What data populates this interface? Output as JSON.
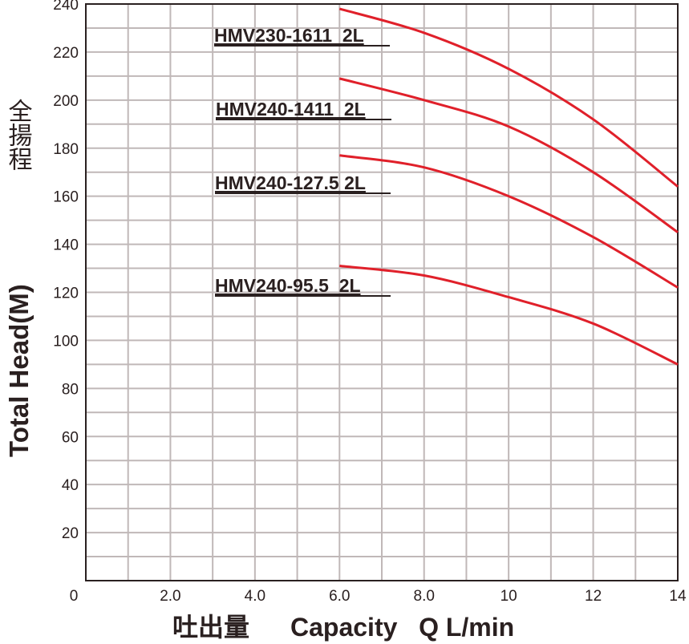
{
  "chart_data": {
    "type": "line",
    "xlabel_cjk": "吐出量",
    "xlabel": "Capacity   Q L/min",
    "ylabel_cjk": "全揚程",
    "ylabel": "Total Head(M)",
    "xlim": [
      0,
      14
    ],
    "ylim": [
      0,
      240
    ],
    "x_ticks": [
      "0",
      "2.0",
      "4.0",
      "6.0",
      "8.0",
      "10",
      "12",
      "14"
    ],
    "x_tick_values": [
      0,
      2,
      4,
      6,
      8,
      10,
      12,
      14
    ],
    "y_ticks": [
      "20",
      "40",
      "60",
      "80",
      "100",
      "120",
      "140",
      "160",
      "180",
      "200",
      "220",
      "240"
    ],
    "y_tick_values": [
      20,
      40,
      60,
      80,
      100,
      120,
      140,
      160,
      180,
      200,
      220,
      240
    ],
    "grid": true,
    "grid_color": "#c0b8b8",
    "line_color": "#e0202a",
    "series": [
      {
        "name": "HMV230-1611  2L",
        "x": [
          6,
          8,
          10,
          12,
          14
        ],
        "y": [
          238,
          228,
          213,
          192,
          164
        ]
      },
      {
        "name": "HMV240-1411  2L",
        "x": [
          6,
          8,
          10,
          12,
          14
        ],
        "y": [
          209,
          200,
          189,
          170,
          145
        ]
      },
      {
        "name": "HMV240-127.5 2L",
        "x": [
          6,
          8,
          10,
          12,
          14
        ],
        "y": [
          177,
          172,
          160,
          143,
          122
        ]
      },
      {
        "name": "HMV240-95.5  2L",
        "x": [
          6,
          8,
          10,
          12,
          14
        ],
        "y": [
          131,
          127,
          118,
          107,
          90
        ]
      }
    ]
  }
}
